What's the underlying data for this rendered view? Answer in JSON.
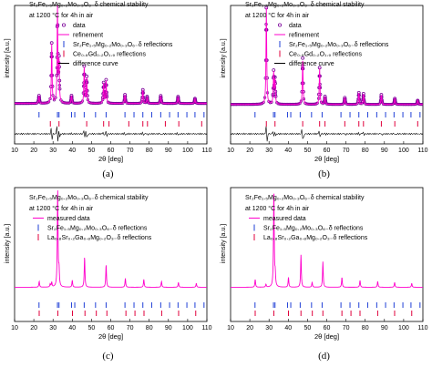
{
  "colors": {
    "data": "#7a0099",
    "refinement": "#ff00cc",
    "phase1_ticks": "#1f3fd6",
    "phase2_ticks": "#e0003c",
    "difference": "#000000"
  },
  "panels": [
    {
      "caption": "(a)",
      "title_lines": [
        "Sr₂Fe₁.₅Mg₀.₂Mo₀.₃O₆₋δ chemical stability",
        "at 1200 °C for 4h in air"
      ],
      "legend": [
        "data",
        "refinement",
        "Sr₂Fe₁.₅Mg₀.₂Mo₀.₃O₆₋δ reflections",
        "Ce₀.₈Gd₀.₂O₁.₉ reflections",
        "difference curve"
      ]
    },
    {
      "caption": "(b)",
      "title_lines": [
        "Sr₂Fe₁.₅Mg₀.₂Mo₀.₃O₆₋δ chemical stability",
        "at 1200 °C for 4h in air"
      ],
      "legend": [
        "data",
        "refinement",
        "Sr₂Fe₁.₅Mg₀.₂Mo₀.₃O₆₋δ reflections",
        "Ce₀.₈Gd₀.₂O₁.₉ reflections",
        "difference curve"
      ]
    },
    {
      "caption": "(c)",
      "title_lines": [
        "Sr₂Fe₁.₅Mg₀.₂Mo₀.₃O₆₋δ chemical stability",
        "at 1200 °C for 4h in air"
      ],
      "legend": [
        "measured data",
        "Sr₂Fe₁.₅Mg₀.₂Mo₀.₃O₆₋δ reflections",
        "La₀.₈Sr₀.₂Ga₀.₈Mg₀.₂O₃₋δ reflections"
      ]
    },
    {
      "caption": "(d)",
      "title_lines": [
        "Sr₂Fe₁.₅Mg₀.₂Mo₀.₃O₆₋δ chemical stability",
        "at 1200 °C for 4h in air"
      ],
      "legend": [
        "measured data",
        "Sr₂Fe₁.₅Mg₀.₂Mo₀.₃O₆₋δ reflections",
        "La₀.₈Sr₀.₂Ga₀.₈Mg₀.₂O₃₋δ reflections"
      ]
    }
  ],
  "chart_data": [
    {
      "type": "scatter",
      "panel": "a",
      "xlabel": "2θ [deg]",
      "ylabel": "intensity [a.u.]",
      "xlim": [
        10,
        110
      ],
      "xticks": [
        10,
        20,
        30,
        40,
        50,
        60,
        70,
        80,
        90,
        100,
        110
      ],
      "background": 0.06,
      "peaks": [
        [
          22.7,
          0.08
        ],
        [
          29.3,
          0.62
        ],
        [
          32.3,
          1.0
        ],
        [
          33.1,
          0.42
        ],
        [
          39.6,
          0.08
        ],
        [
          46.2,
          0.38
        ],
        [
          47.5,
          0.27
        ],
        [
          56.3,
          0.21
        ],
        [
          57.6,
          0.24
        ],
        [
          67.4,
          0.09
        ],
        [
          76.7,
          0.14
        ],
        [
          78.9,
          0.07
        ],
        [
          86.0,
          0.08
        ],
        [
          95.0,
          0.07
        ],
        [
          103.8,
          0.05
        ]
      ],
      "reflections": [
        {
          "name": "Sr₂Fe₁.₅Mg₀.₂Mo₀.₃O₆₋δ reflections",
          "positions": [
            22.7,
            32.3,
            33.1,
            39.6,
            41.3,
            46.2,
            52.1,
            57.6,
            67.4,
            72.1,
            76.7,
            81.3,
            86.0,
            90.6,
            95.0,
            99.6,
            103.8,
            108.5
          ]
        },
        {
          "name": "Ce₀.₈Gd₀.₂O₁.₉ reflections",
          "positions": [
            28.6,
            33.1,
            47.5,
            56.3,
            59.1,
            69.4,
            76.7,
            79.1,
            88.4,
            95.4,
            107.3
          ]
        }
      ],
      "series": [
        {
          "name": "data",
          "marker": "circle"
        },
        {
          "name": "refinement",
          "line": true
        },
        {
          "name": "difference curve",
          "line": true
        }
      ]
    },
    {
      "type": "scatter",
      "panel": "b",
      "xlabel": "2θ [deg]",
      "ylabel": "intensity [a.u.]",
      "xlim": [
        10,
        110
      ],
      "xticks": [
        10,
        20,
        30,
        40,
        50,
        60,
        70,
        80,
        90,
        100,
        110
      ],
      "background": 0.05,
      "peaks": [
        [
          28.6,
          1.0
        ],
        [
          32.4,
          0.33
        ],
        [
          33.1,
          0.25
        ],
        [
          47.5,
          0.48
        ],
        [
          56.3,
          0.38
        ],
        [
          59.1,
          0.08
        ],
        [
          69.4,
          0.07
        ],
        [
          76.7,
          0.12
        ],
        [
          79.1,
          0.11
        ],
        [
          88.4,
          0.1
        ],
        [
          95.4,
          0.06
        ],
        [
          107.3,
          0.04
        ]
      ],
      "reflections": [
        {
          "name": "Sr₂Fe₁.₅Mg₀.₂Mo₀.₃O₆₋δ reflections",
          "positions": [
            22.7,
            32.3,
            33.1,
            39.6,
            41.3,
            46.2,
            52.1,
            57.6,
            67.4,
            72.1,
            76.7,
            81.3,
            86.0,
            90.6,
            95.0,
            99.6,
            103.8,
            108.5
          ]
        },
        {
          "name": "Ce₀.₈Gd₀.₂O₁.₉ reflections",
          "positions": [
            28.6,
            33.1,
            47.5,
            56.3,
            59.1,
            69.4,
            76.7,
            79.1,
            88.4,
            95.4,
            107.3
          ]
        }
      ],
      "series": [
        {
          "name": "data",
          "marker": "circle"
        },
        {
          "name": "refinement",
          "line": true
        },
        {
          "name": "difference curve",
          "line": true
        }
      ]
    },
    {
      "type": "line",
      "panel": "c",
      "xlabel": "2θ [deg]",
      "ylabel": "intensity [a.u.]",
      "xlim": [
        10,
        110
      ],
      "xticks": [
        10,
        20,
        30,
        40,
        50,
        60,
        70,
        80,
        90,
        100,
        110
      ],
      "background": 0.07,
      "peaks": [
        [
          22.8,
          0.06
        ],
        [
          28.5,
          0.03
        ],
        [
          29.3,
          0.05
        ],
        [
          32.4,
          1.0
        ],
        [
          33.1,
          0.16
        ],
        [
          40.0,
          0.07
        ],
        [
          46.4,
          0.31
        ],
        [
          57.6,
          0.23
        ],
        [
          67.6,
          0.09
        ],
        [
          77.2,
          0.08
        ],
        [
          86.4,
          0.06
        ],
        [
          95.2,
          0.05
        ],
        [
          104.5,
          0.04
        ]
      ],
      "reflections": [
        {
          "name": "Sr₂Fe₁.₅Mg₀.₂Mo₀.₃O₆₋δ reflections",
          "positions": [
            22.7,
            32.3,
            33.1,
            39.6,
            41.3,
            46.2,
            52.1,
            57.6,
            67.4,
            72.1,
            76.7,
            81.3,
            86.0,
            90.6,
            95.0,
            99.6,
            103.8,
            108.5
          ]
        },
        {
          "name": "La₀.₈Sr₀.₂Ga₀.₈Mg₀.₂O₃₋δ reflections",
          "positions": [
            22.8,
            32.5,
            40.1,
            46.6,
            52.5,
            58.0,
            67.9,
            72.6,
            77.3,
            86.5,
            95.3,
            104.2
          ]
        }
      ],
      "series": [
        {
          "name": "measured data",
          "line": true
        }
      ]
    },
    {
      "type": "line",
      "panel": "d",
      "xlabel": "2θ [deg]",
      "ylabel": "intensity [a.u.]",
      "xlim": [
        10,
        110
      ],
      "xticks": [
        10,
        20,
        30,
        40,
        50,
        60,
        70,
        80,
        90,
        100,
        110
      ],
      "background": 0.07,
      "peaks": [
        [
          22.8,
          0.08
        ],
        [
          28.4,
          0.03
        ],
        [
          32.5,
          1.0
        ],
        [
          33.2,
          0.12
        ],
        [
          40.1,
          0.1
        ],
        [
          46.6,
          0.33
        ],
        [
          52.4,
          0.05
        ],
        [
          58.0,
          0.26
        ],
        [
          67.9,
          0.1
        ],
        [
          77.3,
          0.07
        ],
        [
          86.5,
          0.06
        ],
        [
          95.3,
          0.05
        ],
        [
          104.2,
          0.04
        ]
      ],
      "reflections": [
        {
          "name": "Sr₂Fe₁.₅Mg₀.₂Mo₀.₃O₆₋δ reflections",
          "positions": [
            22.7,
            32.3,
            33.1,
            39.6,
            41.3,
            46.2,
            52.1,
            57.6,
            67.4,
            72.1,
            76.7,
            81.3,
            86.0,
            90.6,
            95.0,
            99.6,
            103.8,
            108.5
          ]
        },
        {
          "name": "La₀.₈Sr₀.₂Ga₀.₈Mg₀.₂O₃₋δ reflections",
          "positions": [
            22.8,
            32.5,
            40.1,
            46.6,
            52.5,
            58.0,
            67.9,
            72.6,
            77.3,
            86.5,
            95.3,
            104.2
          ]
        }
      ],
      "series": [
        {
          "name": "measured data",
          "line": true
        }
      ]
    }
  ]
}
